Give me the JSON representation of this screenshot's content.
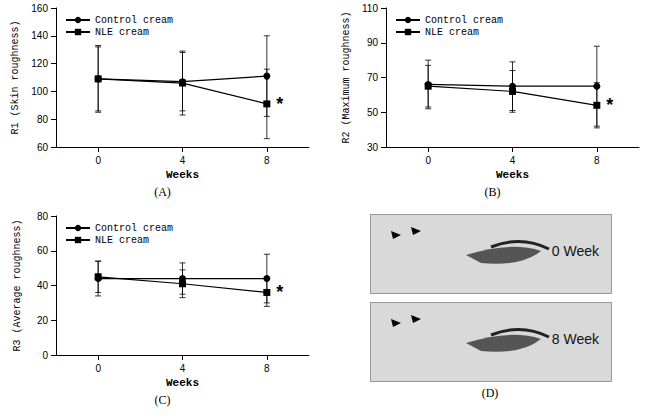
{
  "chart_data": [
    {
      "type": "line",
      "label": "(A)",
      "xlabel": "Weeks",
      "ylabel": "R1 (Skin roughness)",
      "categories": [
        "0",
        "4",
        "8"
      ],
      "ylim": [
        60,
        160
      ],
      "yticks": [
        60,
        80,
        100,
        120,
        140,
        160
      ],
      "grid": false,
      "legend": "upper left",
      "series": [
        {
          "name": "Control cream",
          "color": "#000000",
          "marker": "circle",
          "line_style": "solid",
          "values": [
            109,
            107,
            111
          ],
          "errors": [
            23,
            21,
            29
          ]
        },
        {
          "name": "NLE cream",
          "color": "#000000",
          "marker": "square",
          "line_style": "solid",
          "values": [
            109,
            106,
            91
          ],
          "errors": [
            24,
            23,
            25
          ]
        }
      ],
      "annotations": [
        {
          "text": "*",
          "series": "NLE cream",
          "category": "8"
        }
      ]
    },
    {
      "type": "line",
      "label": "(B)",
      "xlabel": "Weeks",
      "ylabel": "R2 (Maximum roughness)",
      "categories": [
        "0",
        "4",
        "8"
      ],
      "ylim": [
        30,
        110
      ],
      "yticks": [
        30,
        50,
        70,
        90,
        110
      ],
      "grid": false,
      "legend": "upper left",
      "series": [
        {
          "name": "Control cream",
          "color": "#000000",
          "marker": "circle",
          "line_style": "solid",
          "values": [
            66,
            65,
            65
          ],
          "errors": [
            14,
            14,
            23
          ]
        },
        {
          "name": "NLE cream",
          "color": "#000000",
          "marker": "square",
          "line_style": "solid",
          "values": [
            65,
            62,
            54
          ],
          "errors": [
            12,
            12,
            13
          ]
        }
      ],
      "annotations": [
        {
          "text": "*",
          "series": "NLE cream",
          "category": "8"
        }
      ]
    },
    {
      "type": "line",
      "label": "(C)",
      "xlabel": "Weeks",
      "ylabel": "R3 (Average roughness)",
      "categories": [
        "0",
        "4",
        "8"
      ],
      "ylim": [
        0,
        80
      ],
      "yticks": [
        0,
        20,
        40,
        60,
        80
      ],
      "grid": false,
      "legend": "upper left",
      "series": [
        {
          "name": "Control cream",
          "color": "#000000",
          "marker": "circle",
          "line_style": "solid",
          "values": [
            44,
            44,
            44
          ],
          "errors": [
            10,
            9,
            14
          ]
        },
        {
          "name": "NLE cream",
          "color": "#000000",
          "marker": "square",
          "line_style": "solid",
          "values": [
            45,
            41,
            36
          ],
          "errors": [
            9,
            8,
            8
          ]
        }
      ],
      "annotations": [
        {
          "text": "*",
          "series": "NLE cream",
          "category": "8"
        }
      ]
    }
  ],
  "photo_panel": {
    "label": "(D)",
    "images": [
      "0 Week",
      "8 Week"
    ]
  }
}
